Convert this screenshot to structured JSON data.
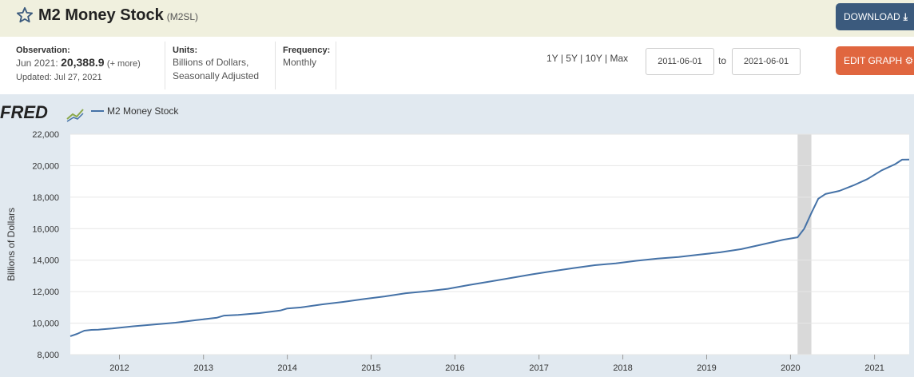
{
  "header": {
    "title": "M2 Money Stock",
    "series_id": "(M2SL)",
    "star_icon": "star-outline-icon",
    "download_label": "DOWNLOAD",
    "download_icon": "download-icon"
  },
  "meta": {
    "observation_label": "Observation:",
    "observation_period": "Jun 2021:",
    "observation_value": "20,388.9",
    "observation_more": "(+ more)",
    "updated": "Updated: Jul 27, 2021",
    "units_label": "Units:",
    "units_line1": "Billions of Dollars,",
    "units_line2": "Seasonally Adjusted",
    "frequency_label": "Frequency:",
    "frequency_value": "Monthly"
  },
  "controls": {
    "range_1y": "1Y",
    "range_5y": "5Y",
    "range_10y": "10Y",
    "range_max": "Max",
    "sep": "|",
    "start_date": "2011-06-01",
    "to_label": "to",
    "end_date": "2021-06-01",
    "edit_label": "EDIT GRAPH",
    "edit_icon": "gear-icon"
  },
  "colors": {
    "line": "#4572a7",
    "recession": "#d9d9d9",
    "plot_bg": "#ffffff",
    "chart_bg": "#e1e9f0",
    "download_btn": "#3b5a7d",
    "edit_btn": "#e0663f"
  },
  "chart_data": {
    "type": "line",
    "brand": "FRED",
    "brand_icon": "fred-chart-icon",
    "legend": [
      "M2 Money Stock"
    ],
    "legend_position": "top-left",
    "ylabel": "Billions of Dollars",
    "ylim": [
      8000,
      22000
    ],
    "yticks": [
      8000,
      10000,
      12000,
      14000,
      16000,
      18000,
      20000,
      22000
    ],
    "ytick_labels": [
      "8,000",
      "10,000",
      "12,000",
      "14,000",
      "16,000",
      "18,000",
      "20,000",
      "22,000"
    ],
    "xlim": [
      "2011-06-01",
      "2021-06-01"
    ],
    "xtick_labels": [
      "2012",
      "2013",
      "2014",
      "2015",
      "2016",
      "2017",
      "2018",
      "2019",
      "2020",
      "2021"
    ],
    "grid": true,
    "recessions": [
      {
        "start": "2020-02-01",
        "end": "2020-04-01"
      }
    ],
    "series": [
      {
        "name": "M2 Money Stock",
        "points": [
          [
            "2011-06-01",
            9170
          ],
          [
            "2011-07-01",
            9320
          ],
          [
            "2011-08-01",
            9520
          ],
          [
            "2011-09-01",
            9570
          ],
          [
            "2011-10-01",
            9590
          ],
          [
            "2011-12-01",
            9660
          ],
          [
            "2012-03-01",
            9800
          ],
          [
            "2012-06-01",
            9910
          ],
          [
            "2012-09-01",
            10030
          ],
          [
            "2012-12-01",
            10190
          ],
          [
            "2013-03-01",
            10350
          ],
          [
            "2013-04-01",
            10480
          ],
          [
            "2013-06-01",
            10520
          ],
          [
            "2013-09-01",
            10640
          ],
          [
            "2013-12-01",
            10800
          ],
          [
            "2014-01-01",
            10930
          ],
          [
            "2014-03-01",
            11000
          ],
          [
            "2014-06-01",
            11190
          ],
          [
            "2014-09-01",
            11350
          ],
          [
            "2014-12-01",
            11530
          ],
          [
            "2015-03-01",
            11700
          ],
          [
            "2015-06-01",
            11900
          ],
          [
            "2015-09-01",
            12030
          ],
          [
            "2015-12-01",
            12180
          ],
          [
            "2016-03-01",
            12420
          ],
          [
            "2016-06-01",
            12640
          ],
          [
            "2016-09-01",
            12870
          ],
          [
            "2016-12-01",
            13100
          ],
          [
            "2017-03-01",
            13300
          ],
          [
            "2017-06-01",
            13500
          ],
          [
            "2017-09-01",
            13680
          ],
          [
            "2017-12-01",
            13800
          ],
          [
            "2018-03-01",
            13960
          ],
          [
            "2018-06-01",
            14100
          ],
          [
            "2018-09-01",
            14200
          ],
          [
            "2018-12-01",
            14350
          ],
          [
            "2019-03-01",
            14500
          ],
          [
            "2019-06-01",
            14700
          ],
          [
            "2019-09-01",
            15000
          ],
          [
            "2019-12-01",
            15300
          ],
          [
            "2020-02-01",
            15450
          ],
          [
            "2020-03-01",
            16000
          ],
          [
            "2020-04-01",
            17000
          ],
          [
            "2020-05-01",
            17900
          ],
          [
            "2020-06-01",
            18200
          ],
          [
            "2020-08-01",
            18400
          ],
          [
            "2020-10-01",
            18750
          ],
          [
            "2020-12-01",
            19150
          ],
          [
            "2021-02-01",
            19700
          ],
          [
            "2021-04-01",
            20100
          ],
          [
            "2021-05-01",
            20380
          ],
          [
            "2021-06-01",
            20389
          ]
        ]
      }
    ]
  }
}
